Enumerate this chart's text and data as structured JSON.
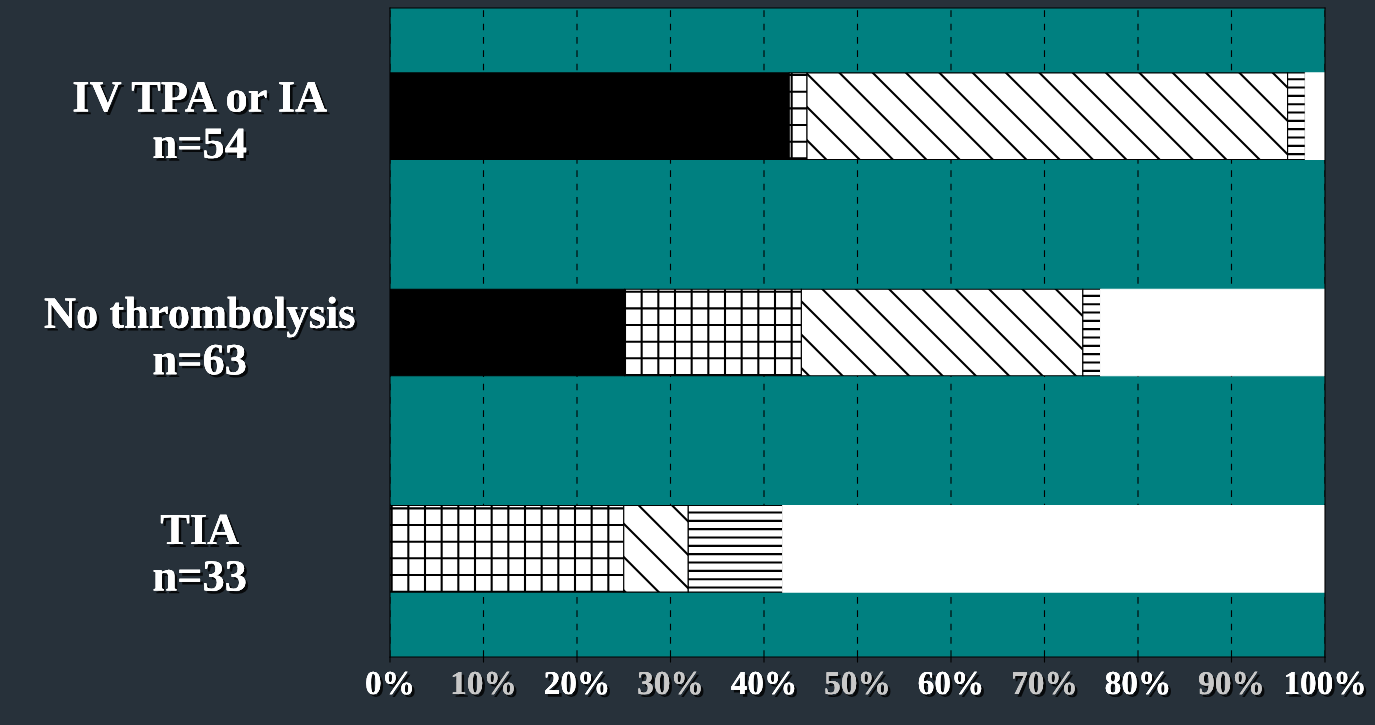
{
  "chart_data": {
    "type": "bar",
    "orientation": "horizontal",
    "stacked": true,
    "categories": [
      "IV TPA or IA\nn=54",
      "No thrombolysis\nn=63",
      "TIA\nn=33"
    ],
    "series": [
      {
        "color": "#000000",
        "values": [
          42.7,
          25.1,
          0
        ]
      },
      {
        "color": "#000000",
        "values": [
          1.9,
          18.9,
          25.0
        ]
      },
      {
        "color": "#000000",
        "values": [
          51.4,
          30.1,
          6.9
        ]
      },
      {
        "color": "#000000",
        "values": [
          1.9,
          1.9,
          10.1
        ]
      },
      {
        "color": "#ffffff",
        "values": [
          2.1,
          24.0,
          58.0
        ]
      }
    ],
    "xlim": [
      0,
      100
    ],
    "xticks": [
      {
        "value": 0,
        "label": "0%"
      },
      {
        "value": 10,
        "label": "10%"
      },
      {
        "value": 20,
        "label": "20%"
      },
      {
        "value": 30,
        "label": "30%"
      },
      {
        "value": 40,
        "label": "40%"
      },
      {
        "value": 50,
        "label": "50%"
      },
      {
        "value": 60,
        "label": "60%"
      },
      {
        "value": 70,
        "label": "70%"
      },
      {
        "value": 80,
        "label": "80%"
      },
      {
        "value": 90,
        "label": "90%"
      },
      {
        "value": 100,
        "label": "100%"
      }
    ],
    "grid": "x",
    "legend": false
  }
}
